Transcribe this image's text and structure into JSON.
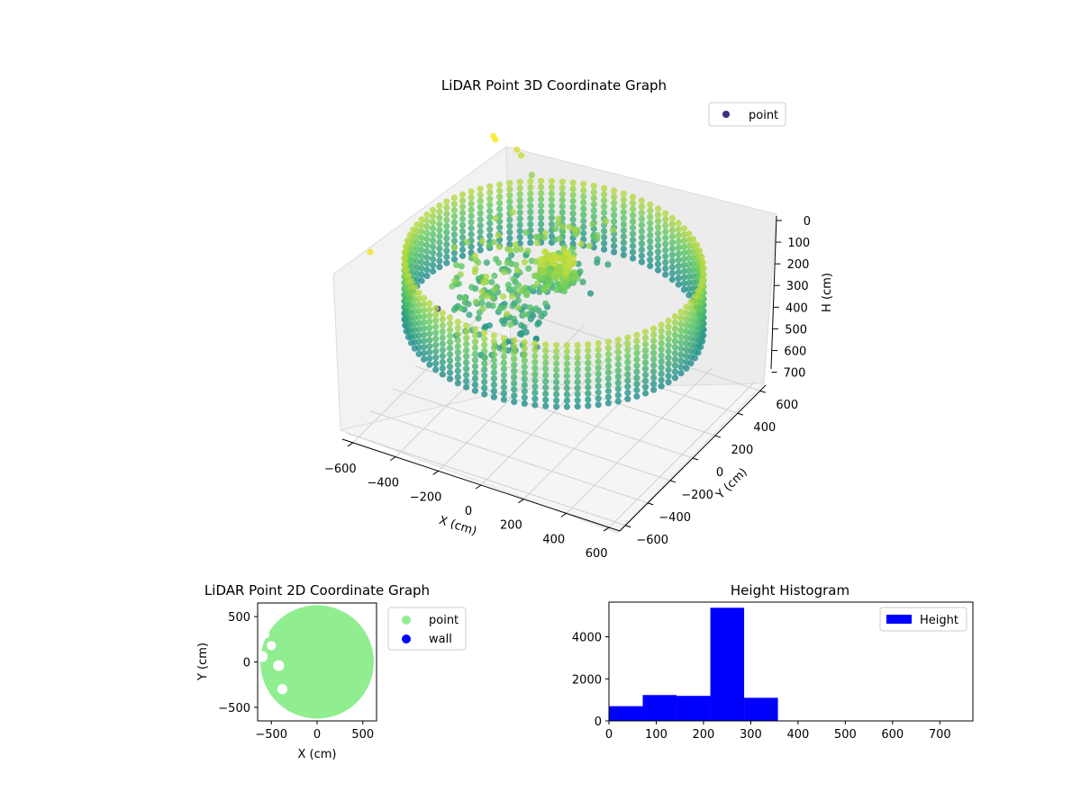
{
  "chart_data": [
    {
      "type": "scatter",
      "projection": "3d",
      "title": "LiDAR Point 3D Coordinate Graph",
      "xlabel": "X (cm)",
      "ylabel": "Y (cm)",
      "zlabel": "H (cm)",
      "xlim": [
        -650,
        650
      ],
      "ylim": [
        -650,
        650
      ],
      "zlim": [
        0,
        760
      ],
      "z_inverted": true,
      "xticks": [
        -600,
        -400,
        -200,
        0,
        200,
        400,
        600
      ],
      "yticks": [
        -600,
        -400,
        -200,
        0,
        200,
        400,
        600
      ],
      "zticks": [
        0,
        100,
        200,
        300,
        400,
        500,
        600,
        700
      ],
      "grid": true,
      "colormap": "viridis",
      "legend": {
        "placement": "upper right",
        "entries": [
          {
            "name": "point",
            "color": "#3b2f7f"
          }
        ]
      },
      "series": [
        {
          "name": "point",
          "description_points": "cylindrical wall of LiDAR returns, radius about 620 cm, heights about 80 to 360 cm; a dense cluster near the origin; scattered interior points",
          "wall_radius": 620,
          "wall_height_range": [
            80,
            360
          ],
          "sample_points": [
            {
              "x": -640,
              "y": -420,
              "h": 20
            },
            {
              "x": -600,
              "y": 600,
              "h": 0
            },
            {
              "x": -580,
              "y": 580,
              "h": 0
            },
            {
              "x": -500,
              "y": 620,
              "h": 40
            },
            {
              "x": -480,
              "y": 620,
              "h": 60
            },
            {
              "x": -420,
              "y": 600,
              "h": 120
            },
            {
              "x": -650,
              "y": 200,
              "h": 600
            }
          ]
        }
      ]
    },
    {
      "type": "scatter",
      "title": "LiDAR Point 2D Coordinate Graph",
      "xlabel": "X (cm)",
      "ylabel": "Y (cm)",
      "xlim": [
        -650,
        650
      ],
      "ylim": [
        -650,
        650
      ],
      "xticks": [
        -500,
        0,
        500
      ],
      "yticks": [
        -500,
        0,
        500
      ],
      "legend": {
        "placement": "outside right",
        "entries": [
          {
            "name": "point",
            "color": "#90ee90"
          },
          {
            "name": "wall",
            "color": "#0000ff"
          }
        ]
      },
      "series": [
        {
          "name": "point",
          "color": "#90ee90",
          "description": "filled disk of radius about 620 cm with notches on the left side"
        },
        {
          "name": "wall",
          "color": "#0000ff",
          "values": []
        }
      ]
    },
    {
      "type": "bar",
      "subtype": "histogram",
      "title": "Height Histogram",
      "xlabel": "",
      "ylabel": "",
      "xlim": [
        0,
        770
      ],
      "ylim": [
        0,
        5650
      ],
      "xticks": [
        0,
        100,
        200,
        300,
        400,
        500,
        600,
        700
      ],
      "yticks": [
        0,
        2000,
        4000
      ],
      "legend": {
        "placement": "upper right",
        "entries": [
          {
            "name": "Height",
            "color": "#0000ff"
          }
        ]
      },
      "series": [
        {
          "name": "Height",
          "color": "#0000ff",
          "bin_edges": [
            0,
            71.5,
            143,
            214.5,
            286,
            357.5,
            429,
            500.5,
            572,
            643.5,
            715
          ],
          "counts": [
            700,
            1230,
            1190,
            5380,
            1100,
            0,
            0,
            0,
            0,
            0
          ]
        }
      ]
    }
  ]
}
